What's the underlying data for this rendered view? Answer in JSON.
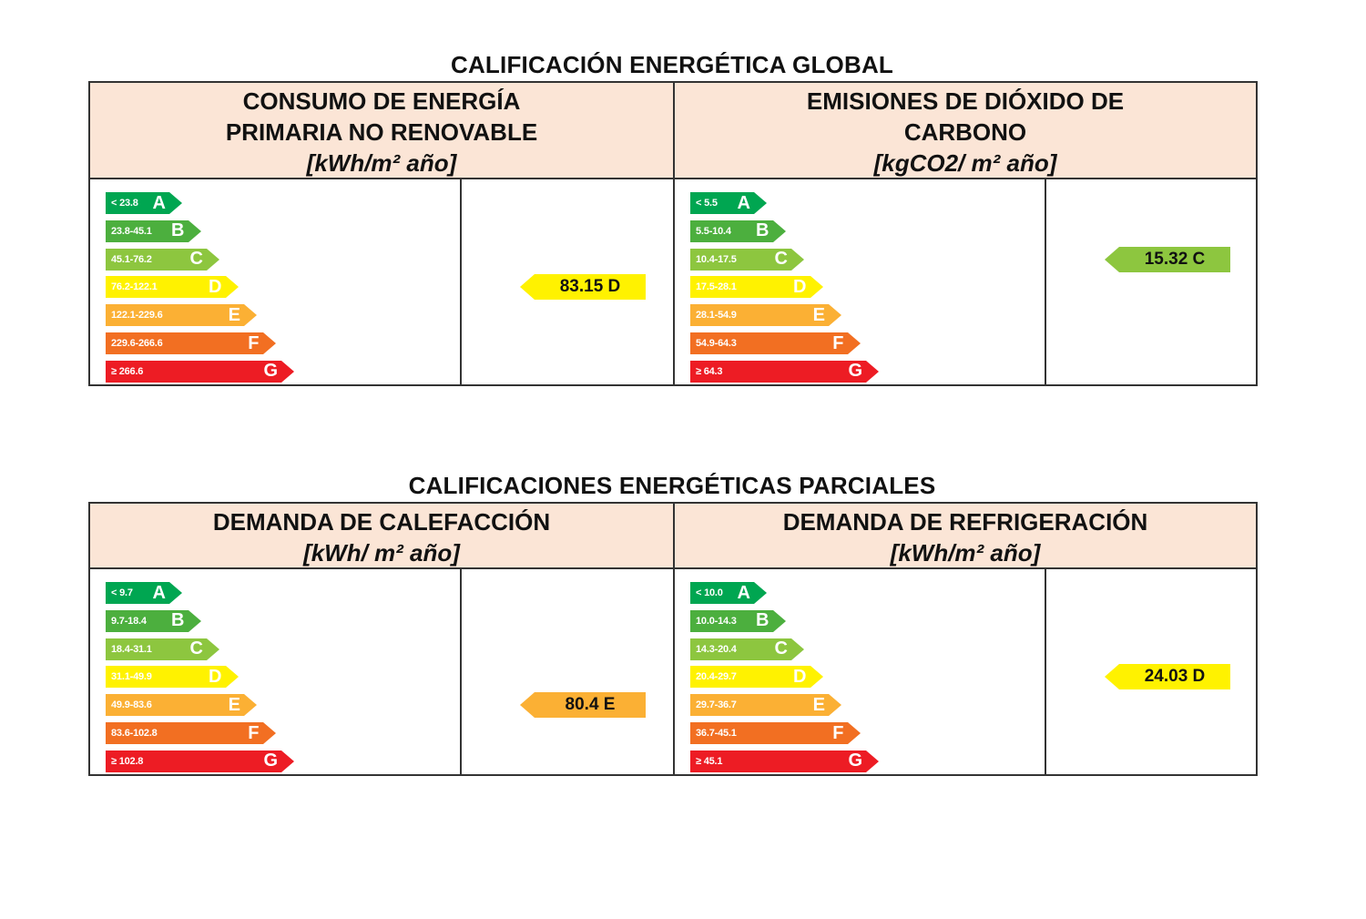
{
  "colors": {
    "A": "#00a651",
    "B": "#4caf3e",
    "C": "#8dc63f",
    "D": "#fff200",
    "E": "#fbb034",
    "F": "#f26f22",
    "G": "#ed1c24",
    "header_bg": "#fbe5d6"
  },
  "global": {
    "title": "CALIFICACIÓN ENERGÉTICA GLOBAL",
    "left": {
      "header_line1": "CONSUMO DE ENERGÍA",
      "header_line2": "PRIMARIA NO RENOVABLE",
      "unit": "[kWh/m² año]",
      "scale": [
        {
          "letter": "A",
          "range": "< 23.8"
        },
        {
          "letter": "B",
          "range": "23.8-45.1"
        },
        {
          "letter": "C",
          "range": "45.1-76.2"
        },
        {
          "letter": "D",
          "range": "76.2-122.1"
        },
        {
          "letter": "E",
          "range": "122.1-229.6"
        },
        {
          "letter": "F",
          "range": "229.6-266.6"
        },
        {
          "letter": "G",
          "range": "≥ 266.6"
        }
      ],
      "rating": {
        "value": "83.15 D",
        "letter": "D"
      }
    },
    "right": {
      "header_line1": "EMISIONES DE DIÓXIDO DE",
      "header_line2": "CARBONO",
      "unit": "[kgCO2/ m² año]",
      "scale": [
        {
          "letter": "A",
          "range": "< 5.5"
        },
        {
          "letter": "B",
          "range": "5.5-10.4"
        },
        {
          "letter": "C",
          "range": "10.4-17.5"
        },
        {
          "letter": "D",
          "range": "17.5-28.1"
        },
        {
          "letter": "E",
          "range": "28.1-54.9"
        },
        {
          "letter": "F",
          "range": "54.9-64.3"
        },
        {
          "letter": "G",
          "range": "≥ 64.3"
        }
      ],
      "rating": {
        "value": "15.32 C",
        "letter": "C"
      }
    }
  },
  "parcial": {
    "title": "CALIFICACIONES ENERGÉTICAS PARCIALES",
    "left": {
      "header_line1": "DEMANDA DE CALEFACCIÓN",
      "unit": "[kWh/ m² año]",
      "scale": [
        {
          "letter": "A",
          "range": "< 9.7"
        },
        {
          "letter": "B",
          "range": "9.7-18.4"
        },
        {
          "letter": "C",
          "range": "18.4-31.1"
        },
        {
          "letter": "D",
          "range": "31.1-49.9"
        },
        {
          "letter": "E",
          "range": "49.9-83.6"
        },
        {
          "letter": "F",
          "range": "83.6-102.8"
        },
        {
          "letter": "G",
          "range": "≥ 102.8"
        }
      ],
      "rating": {
        "value": "80.4 E",
        "letter": "E"
      }
    },
    "right": {
      "header_line1": "DEMANDA DE REFRIGERACIÓN",
      "unit": "[kWh/m² año]",
      "scale": [
        {
          "letter": "A",
          "range": "< 10.0"
        },
        {
          "letter": "B",
          "range": "10.0-14.3"
        },
        {
          "letter": "C",
          "range": "14.3-20.4"
        },
        {
          "letter": "D",
          "range": "20.4-29.7"
        },
        {
          "letter": "E",
          "range": "29.7-36.7"
        },
        {
          "letter": "F",
          "range": "36.7-45.1"
        },
        {
          "letter": "G",
          "range": "≥ 45.1"
        }
      ],
      "rating": {
        "value": "24.03 D",
        "letter": "D"
      }
    }
  }
}
